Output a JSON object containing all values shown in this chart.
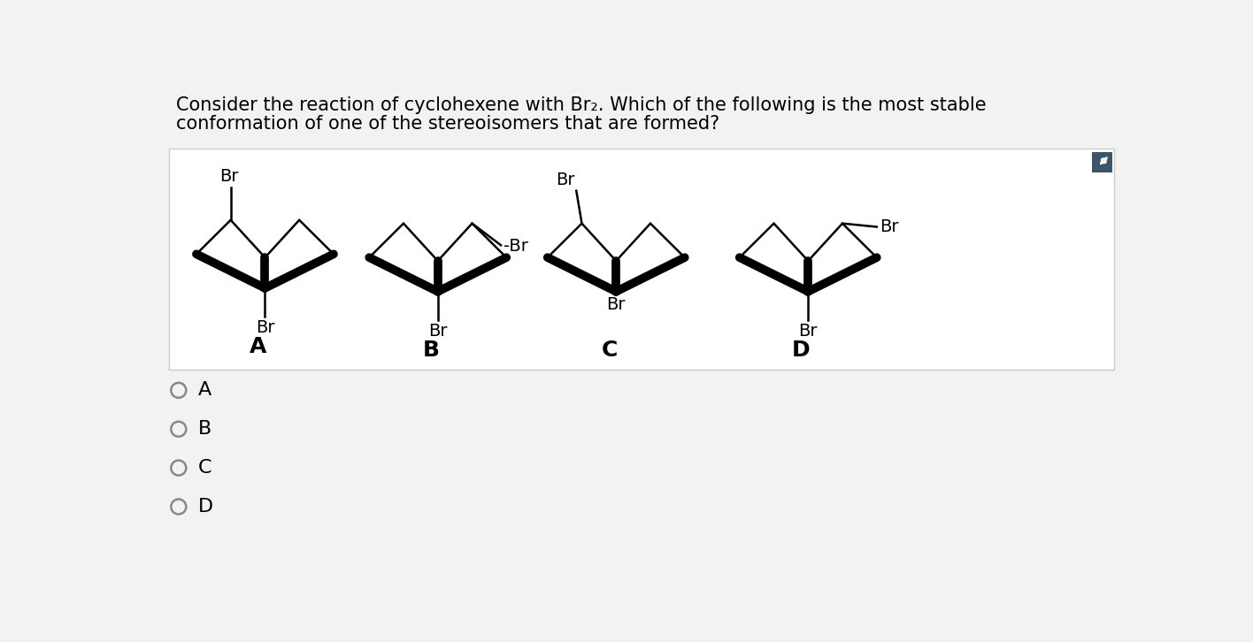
{
  "title_line1": "Consider the reaction of cyclohexene with Br₂. Which of the following is the most stable",
  "title_line2": "conformation of one of the stereoisomers that are formed?",
  "bg_color": "#f2f2f2",
  "panel_bg": "#ffffff",
  "choices": [
    "A",
    "B",
    "C",
    "D"
  ],
  "title_fontsize": 15,
  "label_fontsize": 18,
  "choice_fontsize": 16,
  "br_fontsize": 14
}
